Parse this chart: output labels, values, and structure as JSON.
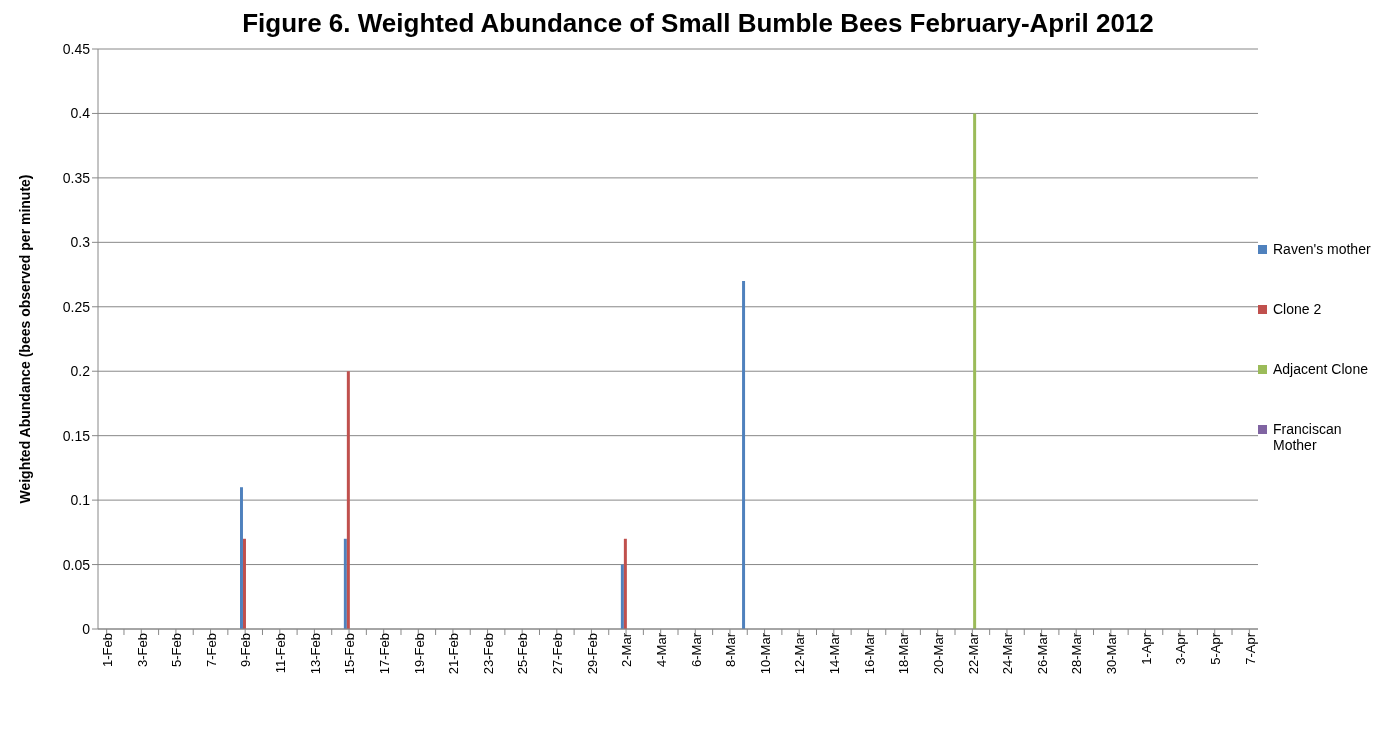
{
  "chart_data": {
    "type": "bar",
    "title": "Figure 6. Weighted Abundance of Small Bumble Bees February-April 2012",
    "ylabel": "Weighted Abundance (bees observed per minute)",
    "categories": [
      "1-Feb",
      null,
      "3-Feb",
      null,
      "5-Feb",
      null,
      "7-Feb",
      null,
      "9-Feb",
      null,
      "11-Feb",
      null,
      "13-Feb",
      null,
      "15-Feb",
      null,
      "17-Feb",
      null,
      "19-Feb",
      null,
      "21-Feb",
      null,
      "23-Feb",
      null,
      "25-Feb",
      null,
      "27-Feb",
      null,
      "29-Feb",
      null,
      "2-Mar",
      null,
      "4-Mar",
      null,
      "6-Mar",
      null,
      "8-Mar",
      null,
      "10-Mar",
      null,
      "12-Mar",
      null,
      "14-Mar",
      null,
      "16-Mar",
      null,
      "18-Mar",
      null,
      "20-Mar",
      null,
      "22-Mar",
      null,
      "24-Mar",
      null,
      "26-Mar",
      null,
      "28-Mar",
      null,
      "30-Mar",
      null,
      "1-Apr",
      null,
      "3-Apr",
      null,
      "5-Apr",
      null,
      "7-Apr"
    ],
    "series": [
      {
        "name": "Raven's mother",
        "color": "#4f81bd",
        "values": [
          null,
          null,
          null,
          null,
          null,
          null,
          null,
          null,
          0.11,
          null,
          null,
          null,
          null,
          null,
          0.07,
          null,
          null,
          null,
          null,
          null,
          null,
          null,
          null,
          null,
          null,
          null,
          null,
          null,
          null,
          null,
          0.05,
          null,
          null,
          null,
          null,
          null,
          null,
          0.27,
          null,
          null,
          null,
          null,
          null,
          null,
          null,
          null,
          null,
          null,
          null,
          null,
          null,
          null,
          null,
          null,
          null,
          null,
          null,
          null,
          null,
          null,
          null,
          null,
          null,
          null,
          null,
          null,
          null
        ]
      },
      {
        "name": "Clone 2",
        "color": "#c0504d",
        "values": [
          null,
          null,
          null,
          null,
          null,
          null,
          null,
          null,
          0.07,
          null,
          null,
          null,
          null,
          null,
          0.2,
          null,
          null,
          null,
          null,
          null,
          null,
          null,
          null,
          null,
          null,
          null,
          null,
          null,
          null,
          null,
          0.07,
          null,
          null,
          null,
          null,
          null,
          null,
          null,
          null,
          null,
          null,
          null,
          null,
          null,
          null,
          null,
          null,
          null,
          null,
          null,
          null,
          null,
          null,
          null,
          null,
          null,
          null,
          null,
          null,
          null,
          null,
          null,
          null,
          null,
          null,
          null,
          null
        ]
      },
      {
        "name": "Adjacent Clone",
        "color": "#9bbb59",
        "values": [
          null,
          null,
          null,
          null,
          null,
          null,
          null,
          null,
          null,
          null,
          null,
          null,
          null,
          null,
          null,
          null,
          null,
          null,
          null,
          null,
          null,
          null,
          null,
          null,
          null,
          null,
          null,
          null,
          null,
          null,
          null,
          null,
          null,
          null,
          null,
          null,
          null,
          null,
          null,
          null,
          null,
          null,
          null,
          null,
          null,
          null,
          null,
          null,
          null,
          null,
          0.4,
          null,
          null,
          null,
          null,
          null,
          null,
          null,
          null,
          null,
          null,
          null,
          null,
          null,
          null,
          null,
          null
        ]
      },
      {
        "name": "Franciscan Mother",
        "color": "#8064a2",
        "values": [
          null,
          null,
          null,
          null,
          null,
          null,
          null,
          null,
          null,
          null,
          null,
          null,
          null,
          null,
          null,
          null,
          null,
          null,
          null,
          null,
          null,
          null,
          null,
          null,
          null,
          null,
          null,
          null,
          null,
          null,
          null,
          null,
          null,
          null,
          null,
          null,
          null,
          null,
          null,
          null,
          null,
          null,
          null,
          null,
          null,
          null,
          null,
          null,
          null,
          null,
          null,
          null,
          null,
          null,
          null,
          null,
          null,
          null,
          null,
          null,
          null,
          null,
          null,
          null,
          null,
          null,
          null
        ]
      }
    ],
    "ylim": [
      0,
      0.45
    ],
    "yticks": [
      0,
      0.05,
      0.1,
      0.15,
      0.2,
      0.25,
      0.3,
      0.35,
      0.4,
      0.45
    ],
    "grid": "y",
    "legend": "right"
  }
}
